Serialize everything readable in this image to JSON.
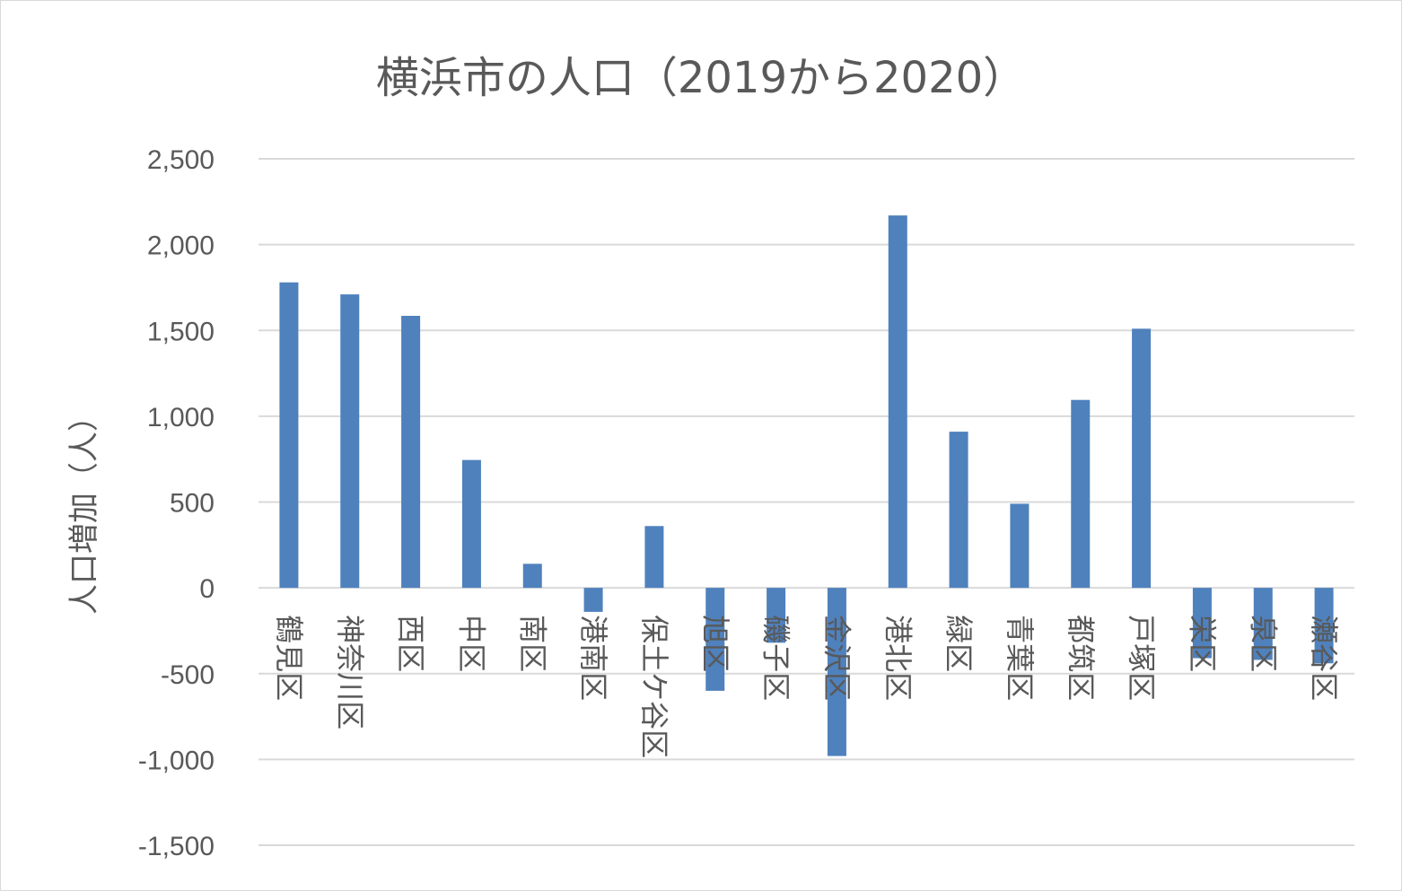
{
  "chart_data": {
    "type": "bar",
    "title": "横浜市の人口（2019から2020）",
    "ylabel": "人口増加（人）",
    "xlabel": "",
    "ylim": [
      -1500,
      2500
    ],
    "yticks": [
      -1500,
      -1000,
      -500,
      0,
      500,
      1000,
      1500,
      2000,
      2500
    ],
    "ytick_labels": [
      "-1,500",
      "-1,000",
      "-500",
      "0",
      "500",
      "1,000",
      "1,500",
      "2,000",
      "2,500"
    ],
    "grid": true,
    "legend": "none",
    "bar_color": "#4f81bd",
    "categories": [
      "鶴見区",
      "神奈川区",
      "西区",
      "中区",
      "南区",
      "港南区",
      "保土ケ谷区",
      "旭区",
      "磯子区",
      "金沢区",
      "港北区",
      "緑区",
      "青葉区",
      "都筑区",
      "戸塚区",
      "栄区",
      "泉区",
      "瀬谷区"
    ],
    "values": [
      1780,
      1710,
      1585,
      745,
      140,
      -140,
      360,
      -600,
      -320,
      -980,
      2170,
      910,
      490,
      1095,
      1510,
      -410,
      -420,
      -440
    ]
  }
}
